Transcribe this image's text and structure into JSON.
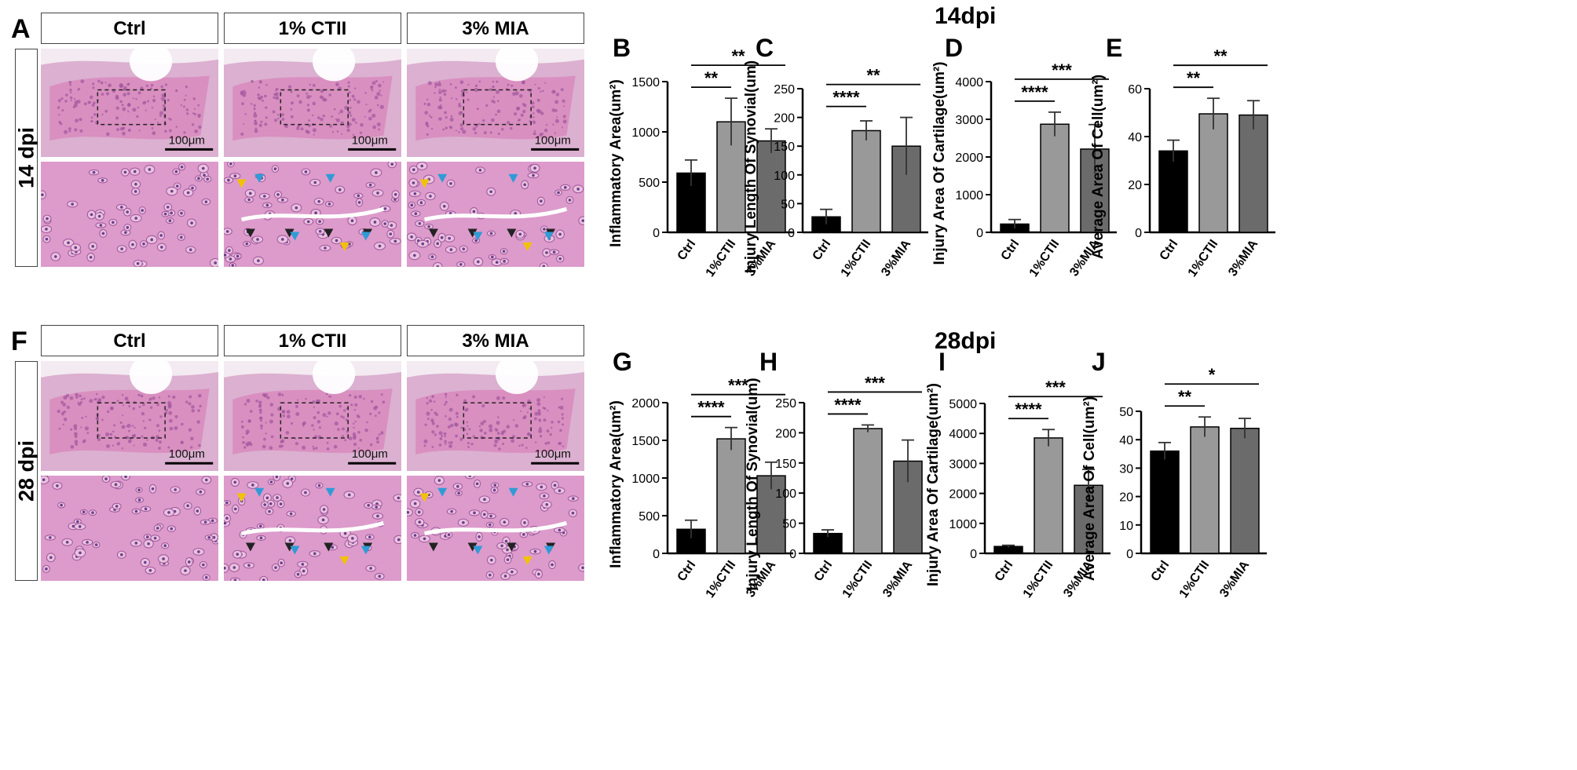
{
  "figure": {
    "top": {
      "title": "14dpi",
      "histology_letter": "A",
      "row_label": "14 dpi",
      "columns": [
        "Ctrl",
        "1% CTII",
        "3% MIA"
      ],
      "scale_bar": "100μm",
      "colors": {
        "tissue": "#d98fc0",
        "stain_dark": "#a0559c",
        "arrow_black": "#222222",
        "arrow_blue": "#2f9bd6",
        "arrow_yellow": "#f2c200"
      }
    },
    "bottom": {
      "title": "28dpi",
      "histology_letter": "F",
      "row_label": "28 dpi",
      "columns": [
        "Ctrl",
        "1% CTII",
        "3% MIA"
      ],
      "scale_bar": "100μm"
    }
  },
  "chart_data": [
    {
      "panel": "B",
      "type": "bar",
      "categories": [
        "Ctrl",
        "1%CTII",
        "3%MIA"
      ],
      "values": [
        590,
        1100,
        910
      ],
      "errors": [
        130,
        235,
        120
      ],
      "ylabel": "Inflammatory Area(um²)",
      "ylim": [
        0,
        1500
      ],
      "yticks": [
        0,
        500,
        1000,
        1500
      ],
      "yticklabels": [
        "0",
        "500",
        "1000",
        "1500"
      ],
      "colors": [
        "#000000",
        "#999999",
        "#6b6b6b"
      ],
      "significance": [
        {
          "to": 1,
          "label": "**"
        },
        {
          "to": 2,
          "label": "**"
        }
      ]
    },
    {
      "panel": "C",
      "type": "bar",
      "categories": [
        "Ctrl",
        "1%CTII",
        "3%MIA"
      ],
      "values": [
        27,
        177,
        150
      ],
      "errors": [
        13,
        17,
        50
      ],
      "ylabel": "Injury Length Of Synovial(um)",
      "ylim": [
        0,
        250
      ],
      "yticks": [
        0,
        50,
        100,
        150,
        200,
        250
      ],
      "yticklabels": [
        "0",
        "50",
        "100",
        "150",
        "200",
        "250"
      ],
      "colors": [
        "#000000",
        "#999999",
        "#6b6b6b"
      ],
      "significance": [
        {
          "to": 1,
          "label": "****"
        },
        {
          "to": 2,
          "label": "**"
        }
      ]
    },
    {
      "panel": "D",
      "type": "bar",
      "categories": [
        "Ctrl",
        "1%CTII",
        "3%MIA"
      ],
      "values": [
        220,
        2870,
        2210
      ],
      "errors": [
        120,
        320,
        650
      ],
      "ylabel": "Injury Area Of Cartilage(um²)",
      "ylim": [
        0,
        4000
      ],
      "yticks": [
        0,
        1000,
        2000,
        3000,
        4000
      ],
      "yticklabels": [
        "0",
        "1000",
        "2000",
        "3000",
        "4000"
      ],
      "colors": [
        "#000000",
        "#999999",
        "#6b6b6b"
      ],
      "significance": [
        {
          "to": 1,
          "label": "****"
        },
        {
          "to": 2,
          "label": "***"
        }
      ]
    },
    {
      "panel": "E",
      "type": "bar",
      "categories": [
        "Ctrl",
        "1%CTII",
        "3%MIA"
      ],
      "values": [
        34,
        49.5,
        49
      ],
      "errors": [
        4.5,
        6.5,
        6
      ],
      "ylabel": "Average Area Of Cell(um²)",
      "ylim": [
        0,
        60
      ],
      "yticks": [
        0,
        20,
        40,
        60
      ],
      "yticklabels": [
        "0",
        "20",
        "40",
        "60"
      ],
      "colors": [
        "#000000",
        "#999999",
        "#6b6b6b"
      ],
      "significance": [
        {
          "to": 1,
          "label": "**"
        },
        {
          "to": 2,
          "label": "**"
        }
      ]
    },
    {
      "panel": "G",
      "type": "bar",
      "categories": [
        "Ctrl",
        "1%CTII",
        "3%MIA"
      ],
      "values": [
        320,
        1520,
        1030
      ],
      "errors": [
        120,
        150,
        180
      ],
      "ylabel": "Inflammatory Area(um²)",
      "ylim": [
        0,
        2000
      ],
      "yticks": [
        0,
        500,
        1000,
        1500,
        2000
      ],
      "yticklabels": [
        "0",
        "500",
        "1000",
        "1500",
        "2000"
      ],
      "colors": [
        "#000000",
        "#999999",
        "#6b6b6b"
      ],
      "significance": [
        {
          "to": 1,
          "label": "****"
        },
        {
          "to": 2,
          "label": "***"
        }
      ]
    },
    {
      "panel": "H",
      "type": "bar",
      "categories": [
        "Ctrl",
        "1%CTII",
        "3%MIA"
      ],
      "values": [
        33,
        207,
        153
      ],
      "errors": [
        6,
        6,
        35
      ],
      "ylabel": "Injury Length Of Synovial(um)",
      "ylim": [
        0,
        250
      ],
      "yticks": [
        0,
        50,
        100,
        150,
        200,
        250
      ],
      "yticklabels": [
        "0",
        "50",
        "100",
        "150",
        "200",
        "250"
      ],
      "colors": [
        "#000000",
        "#999999",
        "#6b6b6b"
      ],
      "significance": [
        {
          "to": 1,
          "label": "****"
        },
        {
          "to": 2,
          "label": "***"
        }
      ]
    },
    {
      "panel": "I",
      "type": "bar",
      "categories": [
        "Ctrl",
        "1%CTII",
        "3%MIA"
      ],
      "values": [
        230,
        3850,
        2270
      ],
      "errors": [
        40,
        280,
        530
      ],
      "ylabel": "Injury Area Of Cartilage(um²)",
      "ylim": [
        0,
        5000
      ],
      "yticks": [
        0,
        1000,
        2000,
        3000,
        4000,
        5000
      ],
      "yticklabels": [
        "0",
        "1000",
        "2000",
        "3000",
        "4000",
        "5000"
      ],
      "colors": [
        "#000000",
        "#999999",
        "#6b6b6b"
      ],
      "significance": [
        {
          "to": 1,
          "label": "****"
        },
        {
          "to": 2,
          "label": "***"
        }
      ]
    },
    {
      "panel": "J",
      "type": "bar",
      "categories": [
        "Ctrl",
        "1%CTII",
        "3%MIA"
      ],
      "values": [
        36,
        44.5,
        44
      ],
      "errors": [
        3,
        3.5,
        3.5
      ],
      "ylabel": "Average Area Of Cell(um²)",
      "ylim": [
        0,
        50
      ],
      "yticks": [
        0,
        10,
        20,
        30,
        40,
        50
      ],
      "yticklabels": [
        "0",
        "10",
        "20",
        "30",
        "40",
        "50"
      ],
      "colors": [
        "#000000",
        "#999999",
        "#6b6b6b"
      ],
      "significance": [
        {
          "to": 1,
          "label": "**"
        },
        {
          "to": 2,
          "label": "*"
        }
      ]
    }
  ]
}
